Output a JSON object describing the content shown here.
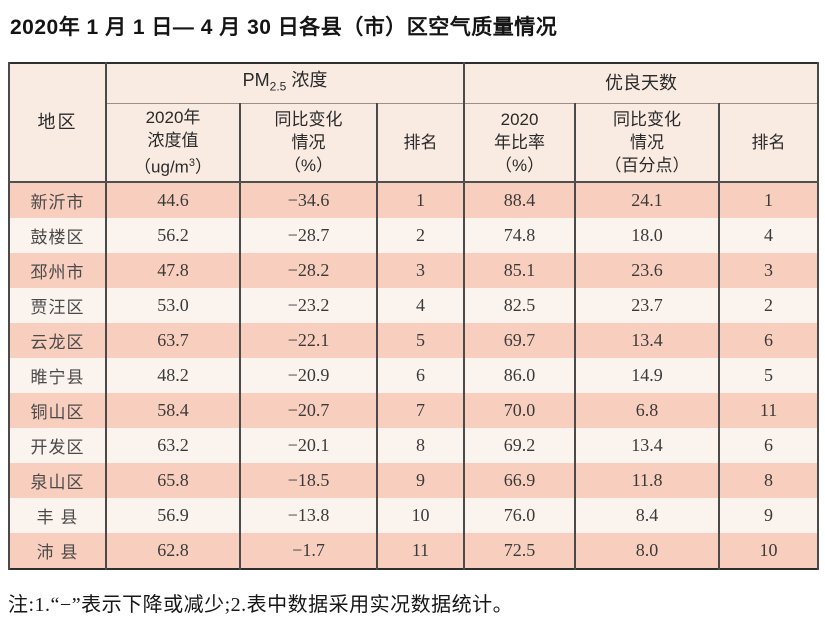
{
  "title": "2020年 1 月 1 日— 4 月 30 日各县（市）区空气质量情况",
  "note": "注:1.“−”表示下降或减少;2.表中数据采用实况数据统计。",
  "colors": {
    "row_odd": "#f8cfbe",
    "row_even": "#fbf3ed",
    "header_bg": "#faebe2",
    "border_dark": "#2e2e2e",
    "border_mid": "#4a4a4a",
    "border_light": "#9a9089",
    "text_main": "#2f2f2f"
  },
  "table": {
    "region_header": "地区",
    "pm_group": {
      "prefix": "PM",
      "sub": "2.5",
      "suffix": " 浓度"
    },
    "good_group": "优良天数",
    "subheaders": {
      "pm_value": {
        "line1": "2020年",
        "line2": "浓度值",
        "line3_pre": "（ug/m",
        "line3_sup": "3",
        "line3_post": "）"
      },
      "pm_change": {
        "line1": "同比变化",
        "line2": "情况",
        "line3": "（%）"
      },
      "pm_rank": "排名",
      "good_ratio": {
        "line1": "2020",
        "line2": "年比率",
        "line3": "（%）"
      },
      "good_change": {
        "line1": "同比变化",
        "line2": "情况",
        "line3": "（百分点）"
      },
      "good_rank": "排名"
    },
    "rows": [
      {
        "region": "新沂市",
        "pm_value": "44.6",
        "pm_change": "−34.6",
        "pm_rank": "1",
        "ratio": "88.4",
        "ratio_change": "24.1",
        "ratio_rank": "1"
      },
      {
        "region": "鼓楼区",
        "pm_value": "56.2",
        "pm_change": "−28.7",
        "pm_rank": "2",
        "ratio": "74.8",
        "ratio_change": "18.0",
        "ratio_rank": "4"
      },
      {
        "region": "邳州市",
        "pm_value": "47.8",
        "pm_change": "−28.2",
        "pm_rank": "3",
        "ratio": "85.1",
        "ratio_change": "23.6",
        "ratio_rank": "3"
      },
      {
        "region": "贾汪区",
        "pm_value": "53.0",
        "pm_change": "−23.2",
        "pm_rank": "4",
        "ratio": "82.5",
        "ratio_change": "23.7",
        "ratio_rank": "2"
      },
      {
        "region": "云龙区",
        "pm_value": "63.7",
        "pm_change": "−22.1",
        "pm_rank": "5",
        "ratio": "69.7",
        "ratio_change": "13.4",
        "ratio_rank": "6"
      },
      {
        "region": "睢宁县",
        "pm_value": "48.2",
        "pm_change": "−20.9",
        "pm_rank": "6",
        "ratio": "86.0",
        "ratio_change": "14.9",
        "ratio_rank": "5"
      },
      {
        "region": "铜山区",
        "pm_value": "58.4",
        "pm_change": "−20.7",
        "pm_rank": "7",
        "ratio": "70.0",
        "ratio_change": "6.8",
        "ratio_rank": "11"
      },
      {
        "region": "开发区",
        "pm_value": "63.2",
        "pm_change": "−20.1",
        "pm_rank": "8",
        "ratio": "69.2",
        "ratio_change": "13.4",
        "ratio_rank": "6"
      },
      {
        "region": "泉山区",
        "pm_value": "65.8",
        "pm_change": "−18.5",
        "pm_rank": "9",
        "ratio": "66.9",
        "ratio_change": "11.8",
        "ratio_rank": "8"
      },
      {
        "region": "丰 县",
        "pm_value": "56.9",
        "pm_change": "−13.8",
        "pm_rank": "10",
        "ratio": "76.0",
        "ratio_change": "8.4",
        "ratio_rank": "9"
      },
      {
        "region": "沛 县",
        "pm_value": "62.8",
        "pm_change": "−1.7",
        "pm_rank": "11",
        "ratio": "72.5",
        "ratio_change": "8.0",
        "ratio_rank": "10"
      }
    ]
  },
  "chart_data": {
    "type": "table",
    "title": "2020年1月1日—4月30日各县（市）区空气质量情况",
    "columns": [
      "地区",
      "PM2.5浓度 2020年浓度值（ug/m3）",
      "PM2.5浓度 同比变化情况（%）",
      "PM2.5浓度 排名",
      "优良天数 2020年比率（%）",
      "优良天数 同比变化情况（百分点）",
      "优良天数 排名"
    ],
    "rows": [
      [
        "新沂市",
        44.6,
        -34.6,
        1,
        88.4,
        24.1,
        1
      ],
      [
        "鼓楼区",
        56.2,
        -28.7,
        2,
        74.8,
        18.0,
        4
      ],
      [
        "邳州市",
        47.8,
        -28.2,
        3,
        85.1,
        23.6,
        3
      ],
      [
        "贾汪区",
        53.0,
        -23.2,
        4,
        82.5,
        23.7,
        2
      ],
      [
        "云龙区",
        63.7,
        -22.1,
        5,
        69.7,
        13.4,
        6
      ],
      [
        "睢宁县",
        48.2,
        -20.9,
        6,
        86.0,
        14.9,
        5
      ],
      [
        "铜山区",
        58.4,
        -20.7,
        7,
        70.0,
        6.8,
        11
      ],
      [
        "开发区",
        63.2,
        -20.1,
        8,
        69.2,
        13.4,
        6
      ],
      [
        "泉山区",
        65.8,
        -18.5,
        9,
        66.9,
        11.8,
        8
      ],
      [
        "丰县",
        56.9,
        -13.8,
        10,
        76.0,
        8.4,
        9
      ],
      [
        "沛县",
        62.8,
        -1.7,
        11,
        72.5,
        8.0,
        10
      ]
    ]
  }
}
